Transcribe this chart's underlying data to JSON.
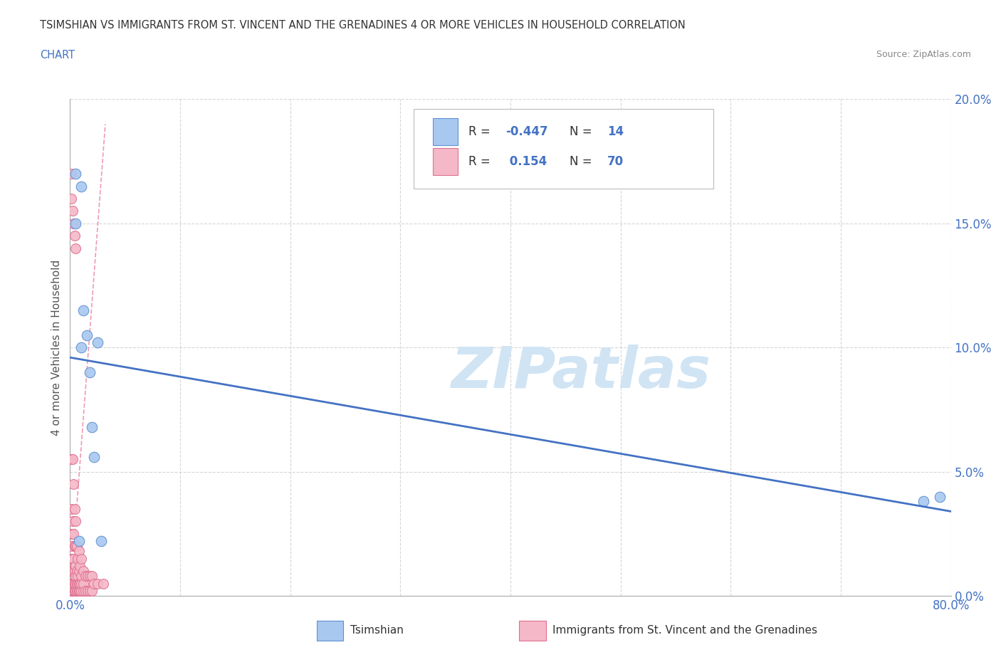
{
  "title_line1": "TSIMSHIAN VS IMMIGRANTS FROM ST. VINCENT AND THE GRENADINES 4 OR MORE VEHICLES IN HOUSEHOLD CORRELATION",
  "title_line2": "CHART",
  "source": "Source: ZipAtlas.com",
  "ylabel": "4 or more Vehicles in Household",
  "xlim": [
    0.0,
    0.8
  ],
  "ylim": [
    0.0,
    0.2
  ],
  "xticks": [
    0.0,
    0.1,
    0.2,
    0.3,
    0.4,
    0.5,
    0.6,
    0.7,
    0.8
  ],
  "yticks": [
    0.0,
    0.05,
    0.1,
    0.15,
    0.2
  ],
  "xticklabels": [
    "0.0%",
    "",
    "",
    "",
    "",
    "",
    "",
    "",
    "80.0%"
  ],
  "yticklabels": [
    "0.0%",
    "5.0%",
    "10.0%",
    "15.0%",
    "20.0%"
  ],
  "blue_color": "#A8C8F0",
  "pink_color": "#F4B8C8",
  "blue_edge_color": "#6090D0",
  "pink_edge_color": "#E07090",
  "blue_line_color": "#4472C4",
  "pink_line_color": "#E87090",
  "watermark": "ZIPatlas",
  "watermark_color": "#D0E4F4",
  "blue_scatter_x": [
    0.005,
    0.01,
    0.005,
    0.012,
    0.015,
    0.01,
    0.018,
    0.025,
    0.02,
    0.022,
    0.008,
    0.028,
    0.79,
    0.775
  ],
  "blue_scatter_y": [
    0.17,
    0.165,
    0.15,
    0.115,
    0.105,
    0.1,
    0.09,
    0.102,
    0.068,
    0.056,
    0.022,
    0.022,
    0.04,
    0.038
  ],
  "pink_scatter_x": [
    0.001,
    0.001,
    0.001,
    0.001,
    0.001,
    0.001,
    0.001,
    0.001,
    0.001,
    0.002,
    0.002,
    0.002,
    0.002,
    0.002,
    0.002,
    0.003,
    0.003,
    0.003,
    0.003,
    0.003,
    0.003,
    0.004,
    0.004,
    0.004,
    0.004,
    0.004,
    0.005,
    0.005,
    0.005,
    0.005,
    0.005,
    0.005,
    0.006,
    0.006,
    0.006,
    0.006,
    0.007,
    0.007,
    0.007,
    0.007,
    0.008,
    0.008,
    0.008,
    0.008,
    0.009,
    0.009,
    0.009,
    0.01,
    0.01,
    0.01,
    0.01,
    0.012,
    0.012,
    0.012,
    0.014,
    0.014,
    0.016,
    0.016,
    0.018,
    0.018,
    0.02,
    0.02,
    0.022,
    0.025,
    0.03,
    0.001,
    0.002,
    0.003,
    0.004,
    0.005
  ],
  "pink_scatter_y": [
    0.002,
    0.005,
    0.01,
    0.015,
    0.02,
    0.025,
    0.035,
    0.055,
    0.17,
    0.002,
    0.005,
    0.01,
    0.015,
    0.03,
    0.055,
    0.002,
    0.005,
    0.01,
    0.015,
    0.025,
    0.045,
    0.002,
    0.005,
    0.01,
    0.02,
    0.035,
    0.002,
    0.005,
    0.008,
    0.012,
    0.02,
    0.03,
    0.002,
    0.005,
    0.01,
    0.02,
    0.002,
    0.005,
    0.008,
    0.015,
    0.002,
    0.005,
    0.01,
    0.018,
    0.002,
    0.005,
    0.012,
    0.002,
    0.005,
    0.008,
    0.015,
    0.002,
    0.005,
    0.01,
    0.002,
    0.008,
    0.002,
    0.008,
    0.002,
    0.008,
    0.002,
    0.008,
    0.005,
    0.005,
    0.005,
    0.16,
    0.155,
    0.15,
    0.145,
    0.14
  ],
  "blue_trend_x": [
    0.0,
    0.8
  ],
  "blue_trend_y": [
    0.096,
    0.034
  ],
  "pink_trend_x": [
    0.0,
    0.032
  ],
  "pink_trend_y": [
    0.0,
    0.19
  ],
  "legend_label1": "Tsimshian",
  "legend_label2": "Immigrants from St. Vincent and the Grenadines"
}
